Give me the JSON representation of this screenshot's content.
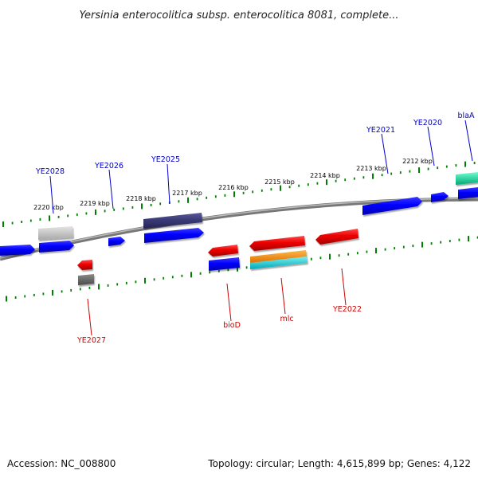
{
  "title": "Yersinia enterocolitica subsp. enterocolitica 8081, complete...",
  "accession_text": "Accession: NC_008800",
  "summary_text": "Topology: circular; Length: 4,615,899 bp; Genes: 4,122",
  "colors": {
    "forward_label": "#0000cc",
    "reverse_label": "#cc0000",
    "scale_tick": "#008000",
    "backbone": "#888888"
  },
  "scale_ticks": [
    "2220 kbp",
    "2219 kbp",
    "2218 kbp",
    "2217 kbp",
    "2216 kbp",
    "2215 kbp",
    "2214 kbp",
    "2213 kbp",
    "2212 kbp"
  ],
  "gene_labels": {
    "ye2028": "YE2028",
    "ye2026": "YE2026",
    "ye2025": "YE2025",
    "ye2021": "YE2021",
    "ye2020": "YE2020",
    "blaa": "blaA",
    "ye2027": "YE2027",
    "biod": "bioD",
    "mlc": "mlc",
    "ye2022": "YE2022"
  }
}
